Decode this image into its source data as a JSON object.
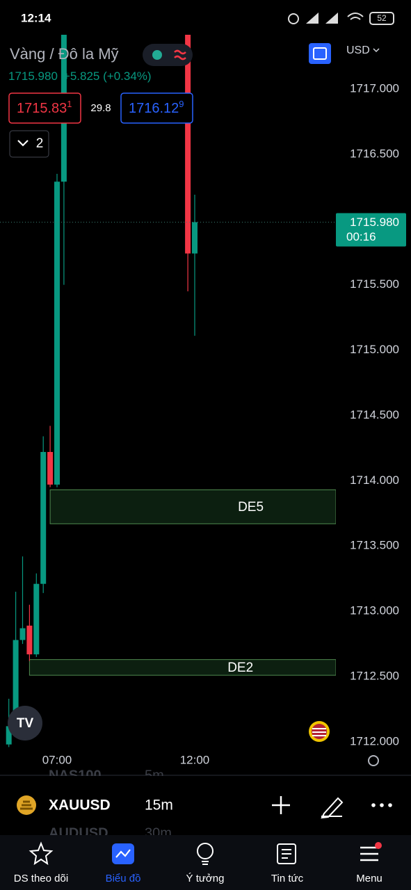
{
  "status_bar": {
    "time": "12:14",
    "battery": "52"
  },
  "header": {
    "symbol_name": "Vàng / Đô la Mỹ",
    "last_price": "1715.980",
    "change": "+5.825 (+0.34%)",
    "bid": "1715.83",
    "bid_sup": "1",
    "spread": "29.8",
    "ask": "1716.12",
    "ask_sup": "9",
    "layers": "2",
    "currency": "USD"
  },
  "chart": {
    "type": "candlestick",
    "up_color": "#089981",
    "down_color": "#f23645",
    "ylim": [
      1711.957,
      1717.415
    ],
    "yticks": [
      {
        "value": 1717,
        "label": "1717.000"
      },
      {
        "value": 1716.5,
        "label": "1716.500"
      },
      {
        "value": 1716,
        "label": "1716.000"
      },
      {
        "value": 1715.5,
        "label": "1715.500"
      },
      {
        "value": 1715,
        "label": "1715.000"
      },
      {
        "value": 1714.5,
        "label": "1714.500"
      },
      {
        "value": 1714,
        "label": "1714.000"
      },
      {
        "value": 1713.5,
        "label": "1713.500"
      },
      {
        "value": 1713,
        "label": "1713.000"
      },
      {
        "value": 1712.5,
        "label": "1712.500"
      },
      {
        "value": 1712,
        "label": "1712.000"
      }
    ],
    "xticks": [
      "07:00",
      "12:00"
    ],
    "candles": [
      {
        "x": "05:15",
        "open": 1711.98,
        "high": 1712.33,
        "low": 1711.96,
        "close": 1712.12
      },
      {
        "x": "05:30",
        "open": 1712.12,
        "high": 1713.15,
        "low": 1712.09,
        "close": 1712.78
      },
      {
        "x": "05:45",
        "open": 1712.78,
        "high": 1713.42,
        "low": 1712.75,
        "close": 1712.87
      },
      {
        "x": "06:00",
        "open": 1712.89,
        "high": 1713.05,
        "low": 1712.62,
        "close": 1712.67
      },
      {
        "x": "06:15",
        "open": 1712.67,
        "high": 1713.29,
        "low": 1712.65,
        "close": 1713.21
      },
      {
        "x": "06:30",
        "open": 1713.21,
        "high": 1714.34,
        "low": 1713.14,
        "close": 1714.22
      },
      {
        "x": "06:45",
        "open": 1714.22,
        "high": 1714.42,
        "low": 1713.95,
        "close": 1713.97
      },
      {
        "x": "07:00",
        "open": 1713.97,
        "high": 1716.35,
        "low": 1713.95,
        "close": 1716.29
      },
      {
        "x": "07:15",
        "open": 1716.29,
        "high": 1717.7,
        "low": 1715.5,
        "close": 1717.6
      },
      {
        "x": "11:45",
        "open": 1717.6,
        "high": 1717.7,
        "low": 1715.45,
        "close": 1715.74
      },
      {
        "x": "12:00",
        "open": 1715.74,
        "high": 1716.19,
        "low": 1715.11,
        "close": 1715.98
      }
    ],
    "zones": [
      {
        "label": "DE5",
        "start": "06:45",
        "top": 1713.93,
        "bottom": 1713.67
      },
      {
        "label": "DE2",
        "start": "06:00",
        "top": 1712.63,
        "bottom": 1712.51
      }
    ],
    "current_price": {
      "value": 1715.98,
      "label": "1715.980",
      "countdown": "00:16"
    }
  },
  "symbol_bar": {
    "symbol": "XAUUSD",
    "interval": "15m",
    "prev_symbol": "NAS100",
    "prev_interval": "5m",
    "next_symbol": "AUDUSD",
    "next_interval": "30m"
  },
  "nav": [
    "DS theo dõi",
    "Biểu đồ",
    "Ý tưởng",
    "Tin tức",
    "Menu"
  ]
}
